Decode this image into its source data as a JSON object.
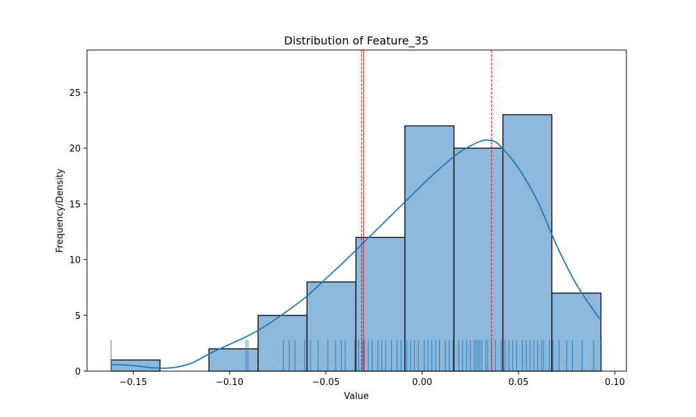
{
  "chart_data": {
    "type": "bar",
    "title": "Distribution of Feature_35",
    "xlabel": "Value",
    "ylabel": "Frequency/Density",
    "xlim": [
      -0.174,
      0.106
    ],
    "ylim": [
      0,
      28.8
    ],
    "xticks": [
      -0.15,
      -0.1,
      -0.05,
      0.0,
      0.05,
      0.1
    ],
    "xtick_labels": [
      "−0.15",
      "−0.10",
      "−0.05",
      "0.00",
      "0.05",
      "0.10"
    ],
    "yticks": [
      0,
      5,
      10,
      15,
      20,
      25
    ],
    "ytick_labels": [
      "0",
      "5",
      "10",
      "15",
      "20",
      "25"
    ],
    "bins": [
      {
        "x0": -0.1615,
        "x1": -0.1361,
        "count": 1
      },
      {
        "x0": -0.1361,
        "x1": -0.1107,
        "count": 0
      },
      {
        "x0": -0.1107,
        "x1": -0.0852,
        "count": 2
      },
      {
        "x0": -0.0852,
        "x1": -0.0598,
        "count": 5
      },
      {
        "x0": -0.0598,
        "x1": -0.0344,
        "count": 8
      },
      {
        "x0": -0.0344,
        "x1": -0.009,
        "count": 12
      },
      {
        "x0": -0.009,
        "x1": 0.0165,
        "count": 22
      },
      {
        "x0": 0.0165,
        "x1": 0.0419,
        "count": 20
      },
      {
        "x0": 0.0419,
        "x1": 0.0673,
        "count": 23
      },
      {
        "x0": 0.0673,
        "x1": 0.0928,
        "count": 7
      }
    ],
    "kde": {
      "x": [
        -0.1615,
        -0.15,
        -0.14,
        -0.13,
        -0.12,
        -0.11,
        -0.1,
        -0.09,
        -0.08,
        -0.07,
        -0.06,
        -0.05,
        -0.04,
        -0.03,
        -0.02,
        -0.01,
        0.0,
        0.01,
        0.02,
        0.03,
        0.035,
        0.04,
        0.05,
        0.06,
        0.07,
        0.08,
        0.09,
        0.0928
      ],
      "y": [
        0.6,
        0.5,
        0.3,
        0.3,
        0.7,
        1.6,
        2.4,
        3.2,
        4.2,
        5.4,
        6.7,
        8.3,
        9.9,
        11.6,
        13.3,
        15.0,
        16.7,
        18.3,
        19.7,
        20.6,
        20.7,
        20.3,
        18.2,
        15.2,
        11.2,
        7.8,
        5.2,
        4.6
      ]
    },
    "rug": [
      -0.1615,
      -0.0915,
      -0.0905,
      -0.072,
      -0.069,
      -0.066,
      -0.061,
      -0.058,
      -0.054,
      -0.049,
      -0.045,
      -0.042,
      -0.04,
      -0.035,
      -0.033,
      -0.031,
      -0.03,
      -0.028,
      -0.026,
      -0.023,
      -0.021,
      -0.019,
      -0.016,
      -0.013,
      -0.011,
      -0.008,
      -0.006,
      -0.004,
      -0.002,
      0.001,
      0.003,
      0.005,
      0.007,
      0.009,
      0.012,
      0.014,
      0.016,
      0.019,
      0.021,
      0.023,
      0.025,
      0.027,
      0.028,
      0.029,
      0.03,
      0.031,
      0.033,
      0.034,
      0.036,
      0.038,
      0.041,
      0.043,
      0.045,
      0.047,
      0.049,
      0.052,
      0.054,
      0.056,
      0.058,
      0.06,
      0.062,
      0.063,
      0.066,
      0.068,
      0.071,
      0.075,
      0.078,
      0.083,
      0.089,
      0.093
    ],
    "vlines": [
      {
        "x": -0.0315,
        "style": "dashed",
        "color": "#ff0000"
      },
      {
        "x": -0.0305,
        "style": "solid",
        "color": "#ff0000"
      },
      {
        "x": 0.036,
        "style": "dashed",
        "color": "#ff0000"
      }
    ],
    "colors": {
      "bar_fill": "#8db8db",
      "bar_edge": "#000000",
      "kde_line": "#1f77b4",
      "rug": "#1f77b4",
      "vline": "#ff0000"
    },
    "grid": false
  }
}
